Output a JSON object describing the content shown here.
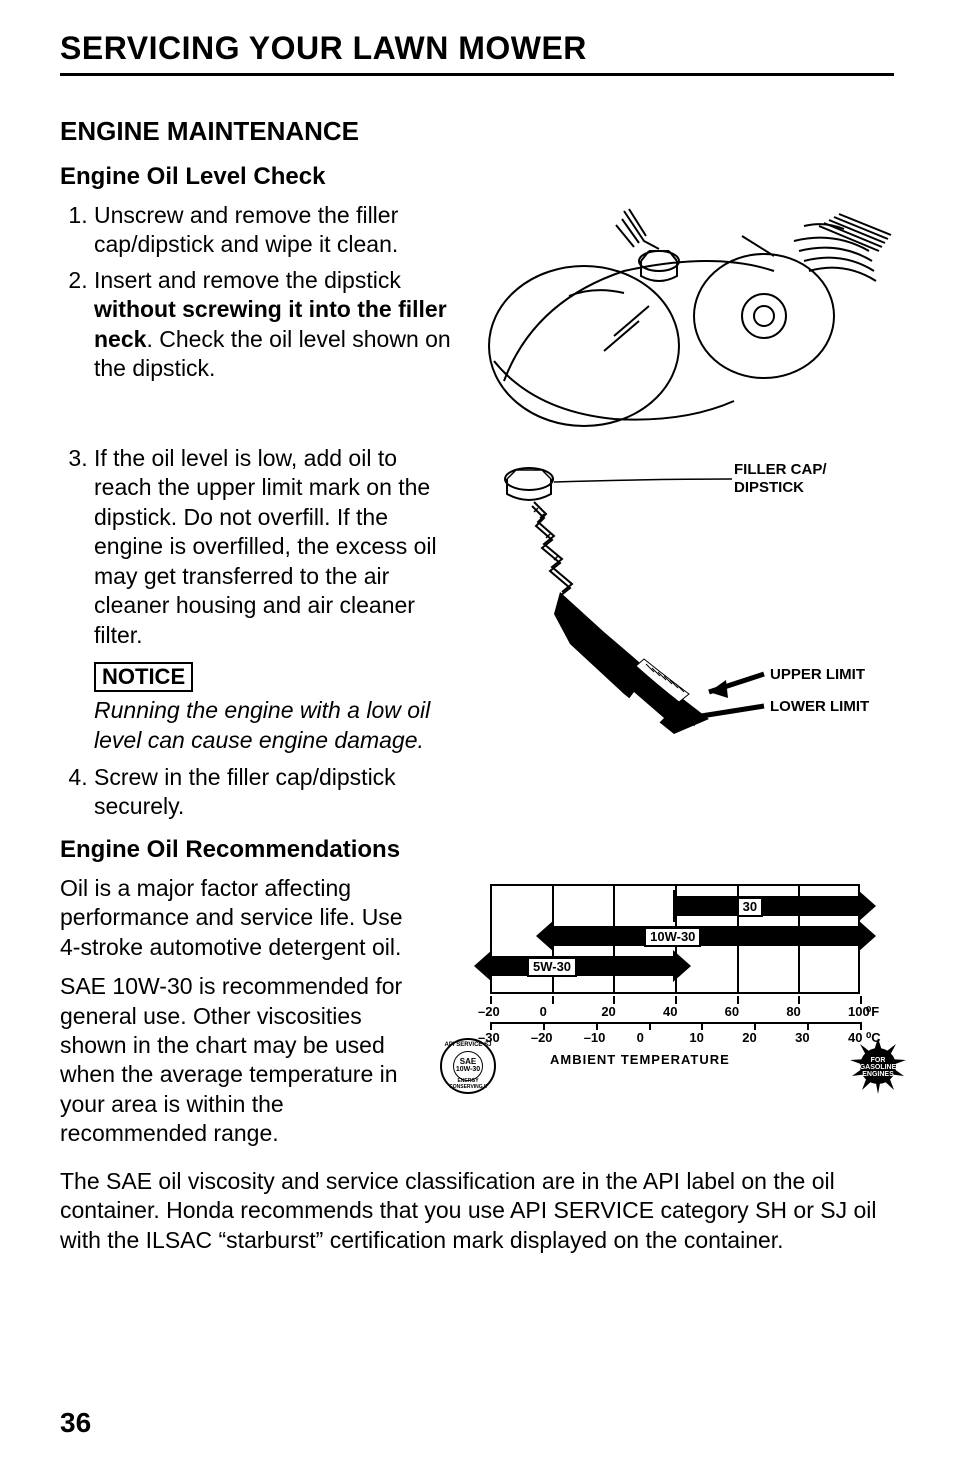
{
  "page_title": "SERVICING YOUR LAWN MOWER",
  "section_heading": "ENGINE MAINTENANCE",
  "oil_check": {
    "heading": "Engine Oil Level Check",
    "step1": "Unscrew and remove the filler cap/dipstick and wipe it clean.",
    "step2_lead": "Insert and remove the dipstick ",
    "step2_bold": "without screwing it into the filler neck",
    "step2_tail": ". Check the oil level shown on the dipstick.",
    "step3": "If the oil level is low, add oil to reach the upper limit mark on the dipstick. Do not overfill. If the engine is overfilled, the excess oil may get transferred to the air cleaner housing and air cleaner filter.",
    "notice_label": "NOTICE",
    "notice_text": "Running the engine with a low oil level can cause engine damage.",
    "step4": "Screw in the filler cap/dipstick securely."
  },
  "dipstick_labels": {
    "filler_cap": "FILLER CAP/",
    "dipstick": "DIPSTICK",
    "upper": "UPPER LIMIT",
    "lower": "LOWER LIMIT"
  },
  "oil_rec": {
    "heading": "Engine Oil Recommendations",
    "p1": "Oil is a major factor affecting performance and service life. Use 4-stroke automotive detergent oil.",
    "p2": "SAE 10W-30 is recommended for general use. Other viscosities shown in the chart may be used when the average temperature in your area is within the recommended range.",
    "p3": "The SAE oil viscosity and service classification are in the API label on the oil container. Honda recommends that you use API SERVICE category SH or SJ oil with the ILSAC “starburst” certification mark displayed on the container."
  },
  "viscosity_chart": {
    "bands": [
      {
        "label": "30",
        "left_start": true,
        "f_start": 40,
        "f_end": 100
      },
      {
        "label": "10W-30",
        "left_start": false,
        "f_start": 0,
        "f_end": 100
      },
      {
        "label": "5W-30",
        "left_start": false,
        "f_start": -20,
        "f_end": 40
      }
    ],
    "f_ticks": [
      "–20",
      "0",
      "20",
      "40",
      "60",
      "80",
      "100"
    ],
    "f_values": [
      -20,
      0,
      20,
      40,
      60,
      80,
      100
    ],
    "f_unit": "°F",
    "c_ticks": [
      "–30",
      "–20",
      "–10",
      "0",
      "10",
      "20",
      "30",
      "40"
    ],
    "c_values": [
      -30,
      -20,
      -10,
      0,
      10,
      20,
      30,
      40
    ],
    "c_unit": "°C",
    "axis_label": "AMBIENT TEMPERATURE",
    "api_top": "API SERVICE SJ",
    "api_sae": "SAE",
    "api_visc": "10W-30",
    "api_bottom": "ENERGY CONSERVING II",
    "starburst_l1": "FOR",
    "starburst_l2": "GASOLINE",
    "starburst_l3": "ENGINES",
    "colors": {
      "black": "#000000",
      "white": "#ffffff"
    }
  },
  "page_number": "36"
}
